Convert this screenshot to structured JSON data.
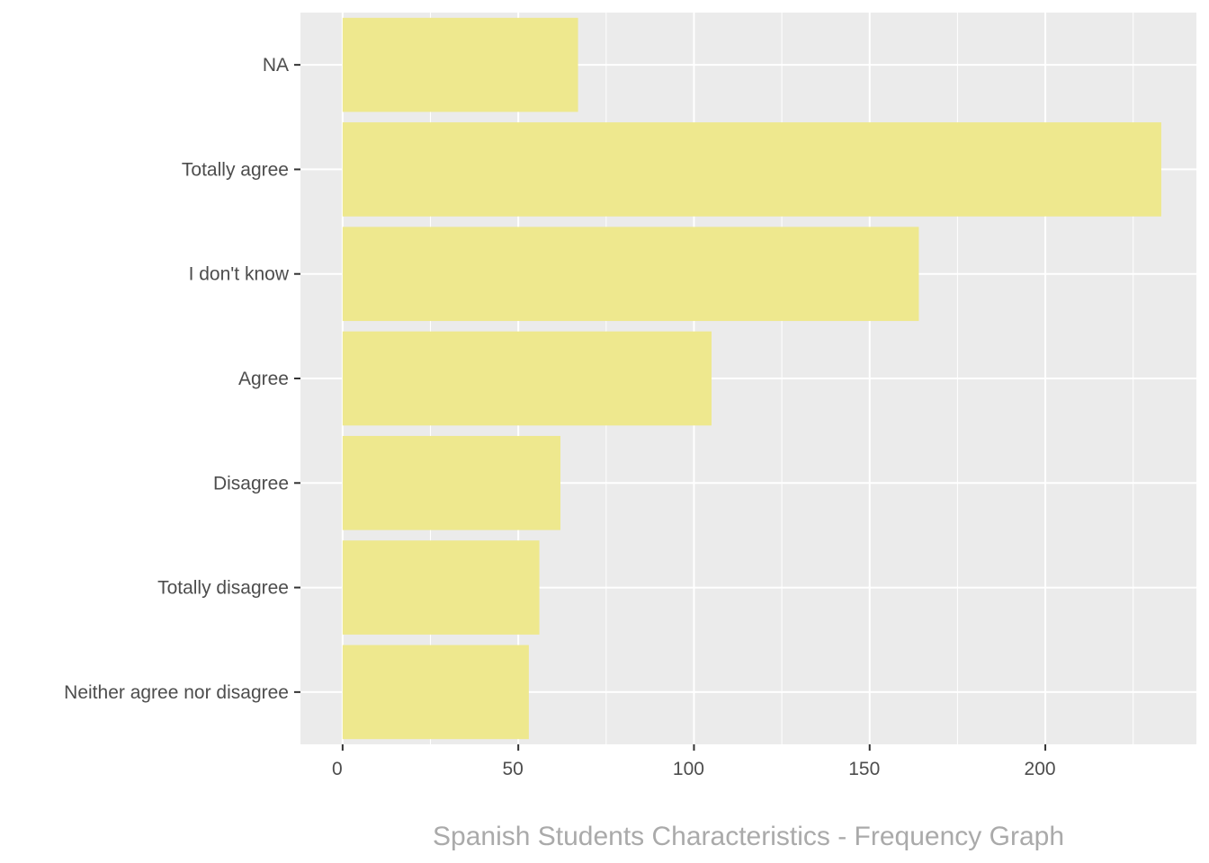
{
  "chart_data": {
    "type": "bar",
    "orientation": "horizontal",
    "categories": [
      "NA",
      "Totally agree",
      "I don't know",
      "Agree",
      "Disagree",
      "Totally disagree",
      "Neither agree nor disagree"
    ],
    "values": [
      67,
      233,
      164,
      105,
      62,
      56,
      53
    ],
    "xlim": [
      -12,
      243
    ],
    "xticks": [
      0,
      50,
      100,
      150,
      200
    ],
    "xtick_labels": [
      "0",
      "50",
      "100",
      "150",
      "200"
    ],
    "grid": true,
    "bar_color": "#EEE88E",
    "panel_color": "#EBEBEB",
    "grid_color": "#FFFFFF",
    "caption": "Spanish Students Characteristics - Frequency Graph",
    "title": "",
    "xlabel": "",
    "ylabel": ""
  }
}
